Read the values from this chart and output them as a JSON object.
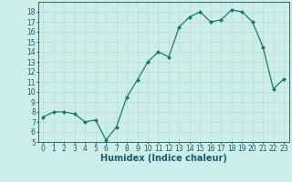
{
  "x": [
    0,
    1,
    2,
    3,
    4,
    5,
    6,
    7,
    8,
    9,
    10,
    11,
    12,
    13,
    14,
    15,
    16,
    17,
    18,
    19,
    20,
    21,
    22,
    23
  ],
  "y": [
    7.5,
    8.0,
    8.0,
    7.8,
    7.0,
    7.2,
    5.2,
    6.5,
    9.5,
    11.2,
    13.0,
    14.0,
    13.5,
    16.5,
    17.5,
    18.0,
    17.0,
    17.2,
    18.2,
    18.0,
    17.0,
    14.5,
    10.3,
    11.3
  ],
  "xlabel": "Humidex (Indice chaleur)",
  "ylim": [
    5,
    19
  ],
  "yticks": [
    5,
    6,
    7,
    8,
    9,
    10,
    11,
    12,
    13,
    14,
    15,
    16,
    17,
    18
  ],
  "xticks": [
    0,
    1,
    2,
    3,
    4,
    5,
    6,
    7,
    8,
    9,
    10,
    11,
    12,
    13,
    14,
    15,
    16,
    17,
    18,
    19,
    20,
    21,
    22,
    23
  ],
  "line_color": "#1a7a6e",
  "marker_color": "#1a7a6e",
  "bg_color": "#cceee8",
  "grid_color": "#c0d8d4",
  "axis_color": "#336666",
  "label_color": "#1a5a6e",
  "tick_fontsize": 5.5,
  "xlabel_fontsize": 7
}
